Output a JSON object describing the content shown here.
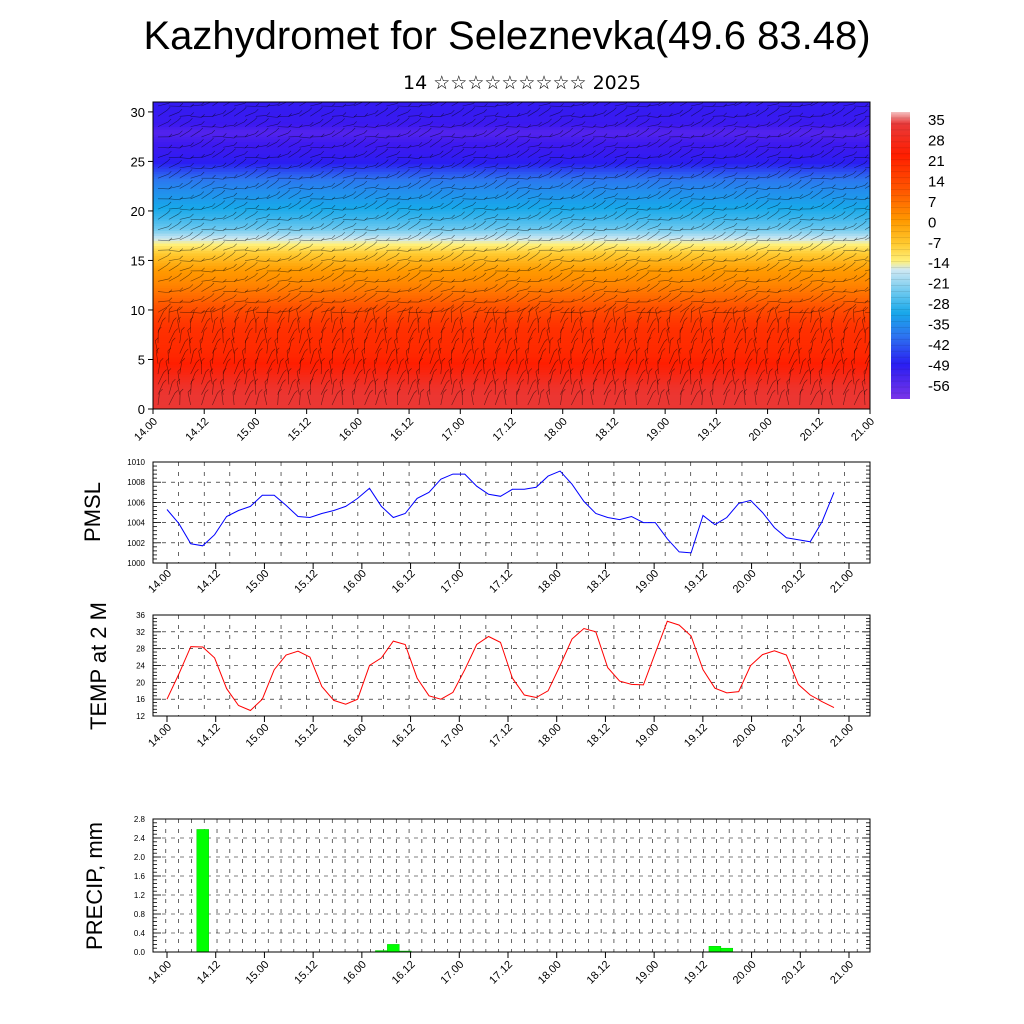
{
  "title": "Kazhydromet for Seleznevka(49.6 83.48)",
  "subtitle": "14 ☆☆☆☆☆☆☆☆☆ 2025",
  "time_labels": [
    "14.00",
    "14.12",
    "15.00",
    "15.12",
    "16.00",
    "16.12",
    "17.00",
    "17.12",
    "18.00",
    "18.12",
    "19.00",
    "19.12",
    "20.00",
    "20.12",
    "21.00"
  ],
  "colors": {
    "pmsl_line": "#0000ff",
    "temp_line": "#ff0000",
    "precip_bar": "#00ff00",
    "precip_bar_edge": "#00cc00"
  },
  "chart_data": [
    {
      "type": "heatmap",
      "title": "",
      "xlabel": "",
      "ylabel": "",
      "x_ticks": [
        "14.00",
        "14.12",
        "15.00",
        "15.12",
        "16.00",
        "16.12",
        "17.00",
        "17.12",
        "18.00",
        "18.12",
        "19.00",
        "19.12",
        "20.00",
        "20.12",
        "21.00"
      ],
      "y_ticks": [
        0,
        5,
        10,
        15,
        20,
        25,
        30
      ],
      "ylim": [
        0,
        31
      ],
      "colorbar_labels": [
        "35",
        "28",
        "21",
        "14",
        "7",
        "0",
        "-7",
        "-14",
        "-21",
        "-28",
        "-35",
        "-42",
        "-49",
        "-56"
      ],
      "colorbar_range": [
        -60,
        40
      ],
      "overlay": "wind barbs",
      "temperature_profile": {
        "height": [
          0,
          2,
          4,
          6,
          8,
          10,
          12,
          14,
          16,
          18,
          20,
          22,
          24,
          26,
          28,
          31
        ],
        "value": [
          29,
          27,
          24,
          21,
          18,
          14,
          9,
          3,
          -8,
          -20,
          -28,
          -36,
          -44,
          -52,
          -57,
          -52
        ]
      }
    },
    {
      "type": "line",
      "title": "",
      "ylabel": "PMSL",
      "ylim": [
        1000,
        1010
      ],
      "y_ticks": [
        1000,
        1002,
        1004,
        1006,
        1008,
        1010
      ],
      "x_ticks": [
        "14.00",
        "14.12",
        "15.00",
        "15.12",
        "16.00",
        "16.12",
        "17.00",
        "17.12",
        "18.00",
        "18.12",
        "19.00",
        "19.12",
        "20.00",
        "20.12",
        "21.00"
      ],
      "x_step_hours": 3,
      "series": [
        {
          "values": [
            1005.3,
            1003.9,
            1001.9,
            1001.7,
            1002.8,
            1004.6,
            1005.2,
            1005.6,
            1006.7,
            1006.7,
            1005.7,
            1004.6,
            1004.5,
            1004.9,
            1005.2,
            1005.6,
            1006.4,
            1007.4,
            1005.6,
            1004.5,
            1004.9,
            1006.4,
            1007.0,
            1008.3,
            1008.8,
            1008.8,
            1007.6,
            1006.8,
            1006.6,
            1007.3,
            1007.3,
            1007.5,
            1008.6,
            1009.1,
            1007.8,
            1006.1,
            1004.9,
            1004.5,
            1004.3,
            1004.6,
            1004.0,
            1004.0,
            1002.4,
            1001.1,
            1001.0,
            1004.7,
            1003.8,
            1004.5,
            1005.9,
            1006.2,
            1005.0,
            1003.5,
            1002.5,
            1002.3,
            1002.1,
            1004.1,
            1007.0
          ]
        }
      ]
    },
    {
      "type": "line",
      "title": "",
      "ylabel": "TEMP at 2 M",
      "ylim": [
        12,
        36
      ],
      "y_ticks": [
        12,
        16,
        20,
        24,
        28,
        32,
        36
      ],
      "x_ticks": [
        "14.00",
        "14.12",
        "15.00",
        "15.12",
        "16.00",
        "16.12",
        "17.00",
        "17.12",
        "18.00",
        "18.12",
        "19.00",
        "19.12",
        "20.00",
        "20.12",
        "21.00"
      ],
      "x_step_hours": 3,
      "series": [
        {
          "values": [
            16,
            22,
            28.5,
            28.4,
            25.8,
            18.5,
            14.5,
            13.3,
            16,
            23,
            26.5,
            27.4,
            26,
            19,
            15.7,
            14.8,
            16,
            24,
            25.8,
            29.8,
            29,
            21,
            16.8,
            16,
            17.6,
            23,
            29,
            30.9,
            29.5,
            21,
            17,
            16.4,
            18,
            24,
            30.3,
            32.8,
            32,
            23.5,
            20.3,
            19.5,
            19.4,
            27,
            34.5,
            33.6,
            31,
            23,
            18.6,
            17.5,
            17.8,
            24,
            26.6,
            27.5,
            26.5,
            19.5,
            17,
            15.4,
            14
          ]
        }
      ]
    },
    {
      "type": "bar",
      "title": "",
      "ylabel": "PRECIP, mm",
      "ylim": [
        0,
        2.8
      ],
      "y_ticks": [
        "0.0",
        "0.4",
        "0.8",
        "1.2",
        "1.6",
        "2.0",
        "2.4",
        "2.8"
      ],
      "x_ticks": [
        "14.00",
        "14.12",
        "15.00",
        "15.12",
        "16.00",
        "16.12",
        "17.00",
        "17.12",
        "18.00",
        "18.12",
        "19.00",
        "19.12",
        "20.00",
        "20.12",
        "21.00"
      ],
      "x_step_hours": 3,
      "values": [
        0,
        0,
        0,
        2.58,
        0,
        0,
        0,
        0,
        0,
        0,
        0,
        0,
        0,
        0,
        0,
        0,
        0,
        0,
        0.03,
        0.16,
        0.02,
        0,
        0,
        0,
        0,
        0,
        0,
        0,
        0,
        0,
        0,
        0,
        0,
        0,
        0,
        0,
        0,
        0,
        0,
        0,
        0,
        0,
        0,
        0,
        0,
        0,
        0.12,
        0.08,
        0,
        0,
        0,
        0,
        0,
        0,
        0,
        0,
        0
      ]
    }
  ]
}
